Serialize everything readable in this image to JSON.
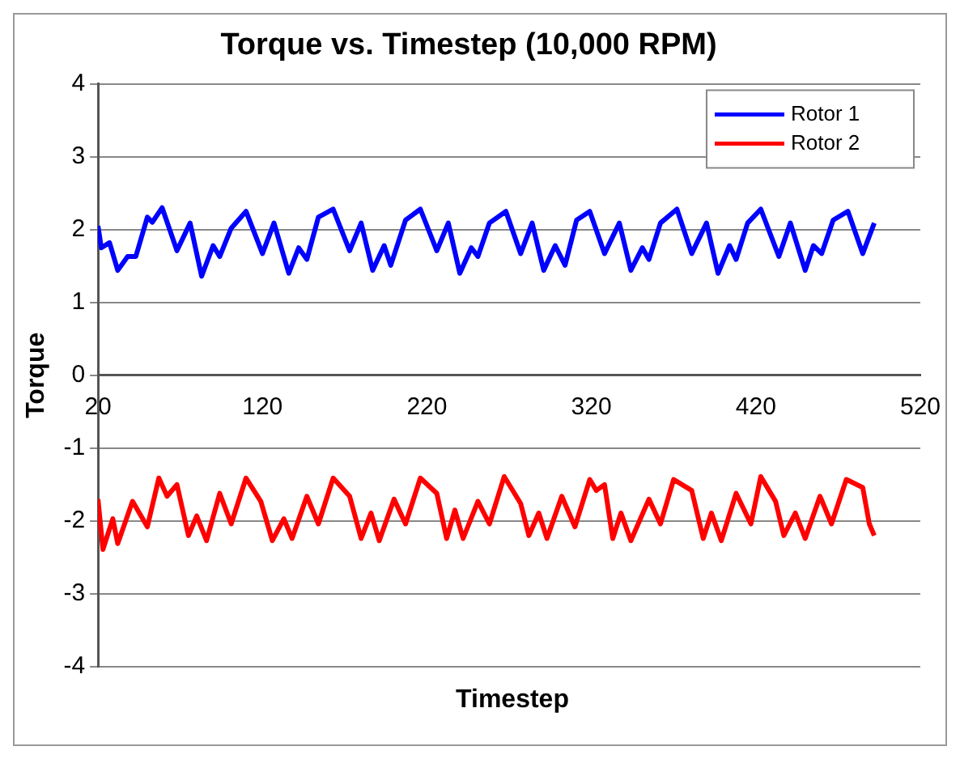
{
  "chart_data": {
    "type": "line",
    "title": "Torque vs. Timestep (10,000 RPM)",
    "xlabel": "Timestep",
    "ylabel": "Torque",
    "xlim": [
      20,
      520
    ],
    "xticks": [
      20,
      120,
      220,
      320,
      420,
      520
    ],
    "ylim": [
      -4,
      4
    ],
    "yticks": [
      -4,
      -3,
      -2,
      -1,
      0,
      1,
      2,
      3,
      4
    ],
    "grid": "y",
    "legend": "top right",
    "marker": "none",
    "line_style": "solid",
    "series": [
      {
        "name": "Rotor 1",
        "color": "#0000ff",
        "x": [
          20,
          22,
          27,
          32,
          38,
          43,
          50,
          53,
          59,
          68,
          76,
          83,
          90,
          94,
          101,
          110,
          120,
          127,
          136,
          142,
          147,
          154,
          163,
          173,
          180,
          187,
          194,
          198,
          207,
          216,
          226,
          233,
          240,
          247,
          251,
          258,
          268,
          277,
          284,
          291,
          298,
          304,
          311,
          319,
          328,
          337,
          344,
          351,
          355,
          362,
          372,
          381,
          390,
          397,
          404,
          408,
          415,
          423,
          434,
          441,
          450,
          455,
          460,
          467,
          476,
          485,
          492
        ],
        "values": [
          2.05,
          1.75,
          1.82,
          1.44,
          1.63,
          1.63,
          2.17,
          2.1,
          2.3,
          1.71,
          2.09,
          1.36,
          1.78,
          1.63,
          2.02,
          2.25,
          1.67,
          2.09,
          1.4,
          1.75,
          1.59,
          2.17,
          2.28,
          1.71,
          2.09,
          1.44,
          1.78,
          1.51,
          2.13,
          2.28,
          1.71,
          2.09,
          1.4,
          1.75,
          1.63,
          2.09,
          2.25,
          1.67,
          2.09,
          1.44,
          1.78,
          1.51,
          2.13,
          2.25,
          1.67,
          2.09,
          1.44,
          1.75,
          1.59,
          2.09,
          2.28,
          1.67,
          2.09,
          1.4,
          1.78,
          1.59,
          2.09,
          2.28,
          1.63,
          2.09,
          1.44,
          1.78,
          1.67,
          2.13,
          2.25,
          1.67,
          2.09
        ]
      },
      {
        "name": "Rotor 2",
        "color": "#ff0000",
        "x": [
          20,
          23,
          29,
          32,
          41,
          50,
          57,
          62,
          68,
          75,
          80,
          86,
          94,
          101,
          110,
          119,
          126,
          133,
          138,
          147,
          154,
          163,
          173,
          180,
          186,
          191,
          200,
          207,
          216,
          226,
          232,
          237,
          242,
          251,
          258,
          267,
          277,
          282,
          288,
          293,
          302,
          310,
          319,
          323,
          328,
          333,
          338,
          344,
          355,
          362,
          370,
          381,
          388,
          393,
          399,
          408,
          417,
          423,
          432,
          437,
          444,
          450,
          459,
          466,
          475,
          485,
          489,
          492
        ],
        "values": [
          -1.7,
          -2.39,
          -1.97,
          -2.31,
          -1.73,
          -2.08,
          -1.41,
          -1.66,
          -1.5,
          -2.2,
          -1.93,
          -2.27,
          -1.62,
          -2.04,
          -1.41,
          -1.73,
          -2.27,
          -1.97,
          -2.24,
          -1.66,
          -2.04,
          -1.41,
          -1.66,
          -2.24,
          -1.89,
          -2.27,
          -1.7,
          -2.04,
          -1.41,
          -1.62,
          -2.24,
          -1.85,
          -2.24,
          -1.73,
          -2.04,
          -1.39,
          -1.76,
          -2.2,
          -1.89,
          -2.24,
          -1.66,
          -2.08,
          -1.43,
          -1.58,
          -1.5,
          -2.24,
          -1.89,
          -2.27,
          -1.7,
          -2.04,
          -1.43,
          -1.58,
          -2.24,
          -1.89,
          -2.27,
          -1.62,
          -2.04,
          -1.39,
          -1.73,
          -2.2,
          -1.89,
          -2.24,
          -1.66,
          -2.04,
          -1.43,
          -1.54,
          -2.04,
          -2.2
        ]
      }
    ]
  }
}
